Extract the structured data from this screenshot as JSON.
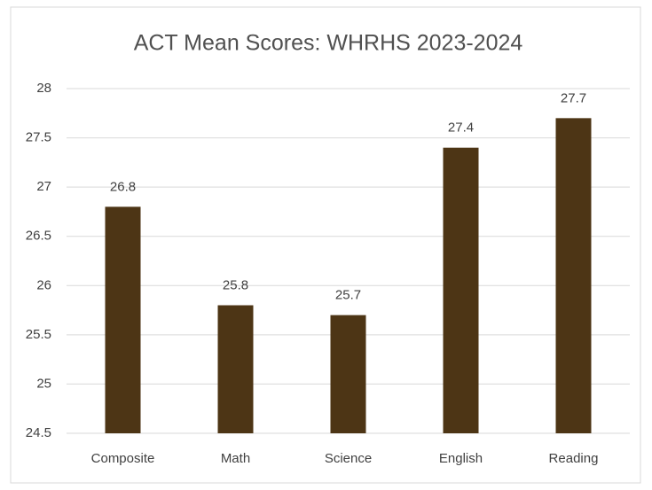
{
  "chart_data": {
    "type": "bar",
    "title": "ACT Mean Scores: WHRHS 2023-2024",
    "categories": [
      "Composite",
      "Math",
      "Science",
      "English",
      "Reading"
    ],
    "values": [
      26.8,
      25.8,
      25.7,
      27.4,
      27.7
    ],
    "color": "#4d3515",
    "ylim": [
      24.5,
      28
    ],
    "yticks": [
      24.5,
      25,
      25.5,
      26,
      26.5,
      27,
      27.5,
      28
    ],
    "grid": true
  }
}
